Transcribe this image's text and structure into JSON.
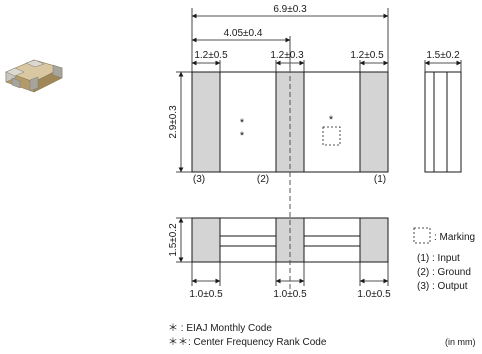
{
  "dimensions": {
    "overall_length": "6.9±0.3",
    "pad_pitch": "4.05±0.4",
    "pad_width_left": "1.2±0.5",
    "pad_width_center": "1.2±0.3",
    "pad_width_right": "1.2±0.5",
    "height": "2.9±0.3",
    "side_width": "1.5±0.2",
    "thickness": "1.5±0.2",
    "bottom_left": "1.0±0.5",
    "bottom_center": "1.0±0.5",
    "bottom_right": "1.0±0.5"
  },
  "terminals": {
    "t3": "(3)",
    "t2": "(2)",
    "t1": "(1)"
  },
  "markings": {
    "single_star": "*",
    "double_star_a": "*",
    "double_star_b": "*"
  },
  "legend": {
    "marking": ": Marking",
    "input": "(1) : Input",
    "ground": "(2) : Ground",
    "output": "(3) : Output"
  },
  "notes": {
    "monthly_code": "＊ : EIAJ Monthly Code",
    "rank_code": "＊＊: Center Frequency Rank Code",
    "unit": "(in mm)"
  },
  "colors": {
    "pad_fill": "#d4d4d4",
    "line": "#1a1a1a",
    "component_body": "#b8a27a",
    "component_terminal": "#a7a49c"
  }
}
